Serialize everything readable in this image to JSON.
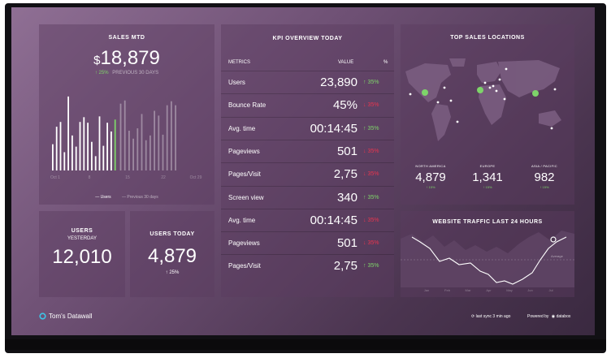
{
  "sales_mtd": {
    "title": "SALES MTD",
    "currency": "$",
    "value": "18,879",
    "delta": "↑ 25%",
    "comparison": "PREVIOUS 30 DAYS",
    "x_ticks": [
      "Oct 1",
      "8",
      "15",
      "22",
      "Oct 29"
    ],
    "legend_current": "— Users",
    "legend_previous": "— Previous 30 days",
    "accent_color": "#7ed46a"
  },
  "chart_data": {
    "type": "bar",
    "title": "SALES MTD",
    "x_ticks": [
      "Oct 1",
      "8",
      "15",
      "22",
      "Oct 29"
    ],
    "series": [
      {
        "name": "Users",
        "values": [
          0.33,
          0.55,
          0.61,
          0.23,
          0.93,
          0.44,
          0.3,
          0.61,
          0.67,
          0.6,
          0.36,
          0.18,
          0.68,
          0.31,
          0.6,
          0.49,
          0.64
        ]
      },
      {
        "name": "Previous 30 days",
        "values": [
          0.84,
          0.88,
          0.5,
          0.4,
          0.53,
          0.71,
          0.38,
          0.44,
          0.75,
          0.69,
          0.45,
          0.82,
          0.87,
          0.82
        ]
      }
    ],
    "highlight_index": 16
  },
  "users": {
    "title": "USERS",
    "subtitle": "YESTERDAY",
    "value": "12,010"
  },
  "users_today": {
    "title": "USERS TODAY",
    "value": "4,879",
    "delta": "↑ 25%"
  },
  "kpi": {
    "title": "KPI OVERVIEW TODAY",
    "col_metrics": "METRICS",
    "col_value": "VALUE",
    "col_pct": "%",
    "rows": [
      {
        "label": "Users",
        "value": "23,890",
        "delta": "↑ 35%",
        "dir": "up"
      },
      {
        "label": "Bounce Rate",
        "value": "45%",
        "delta": "↓ 35%",
        "dir": "down"
      },
      {
        "label": "Avg. time",
        "value": "00:14:45",
        "delta": "↑ 35%",
        "dir": "up"
      },
      {
        "label": "Pageviews",
        "value": "501",
        "delta": "↓ 35%",
        "dir": "down"
      },
      {
        "label": "Pages/Visit",
        "value": "2,75",
        "delta": "↓ 35%",
        "dir": "down"
      },
      {
        "label": "Screen view",
        "value": "340",
        "delta": "↑ 35%",
        "dir": "up"
      },
      {
        "label": "Avg. time",
        "value": "00:14:45",
        "delta": "↓ 35%",
        "dir": "down"
      },
      {
        "label": "Pageviews",
        "value": "501",
        "delta": "↓ 35%",
        "dir": "down"
      },
      {
        "label": "Pages/Visit",
        "value": "2,75",
        "delta": "↑ 35%",
        "dir": "up"
      }
    ]
  },
  "top_locations": {
    "title": "TOP SALES LOCATIONS",
    "regions": [
      {
        "name": "NORTH AMERICA",
        "value": "4,879",
        "delta": "↑ 15%"
      },
      {
        "name": "EUROPE",
        "value": "1,341",
        "delta": "↑ 15%"
      },
      {
        "name": "ASIA / PACIFIC",
        "value": "982",
        "delta": "↑ 15%"
      }
    ]
  },
  "traffic": {
    "title": "WEBSITE TRAFFIC LAST 24 HOURS",
    "x_ticks": [
      "Jan",
      "Feb",
      "Mar",
      "Apr",
      "May",
      "Jun",
      "Jul"
    ],
    "target_label": "Average"
  },
  "footer": {
    "brand": "Tom's Datawall",
    "sync": "last sync 3 min ago",
    "powered": "Powered by",
    "vendor": "databox"
  }
}
